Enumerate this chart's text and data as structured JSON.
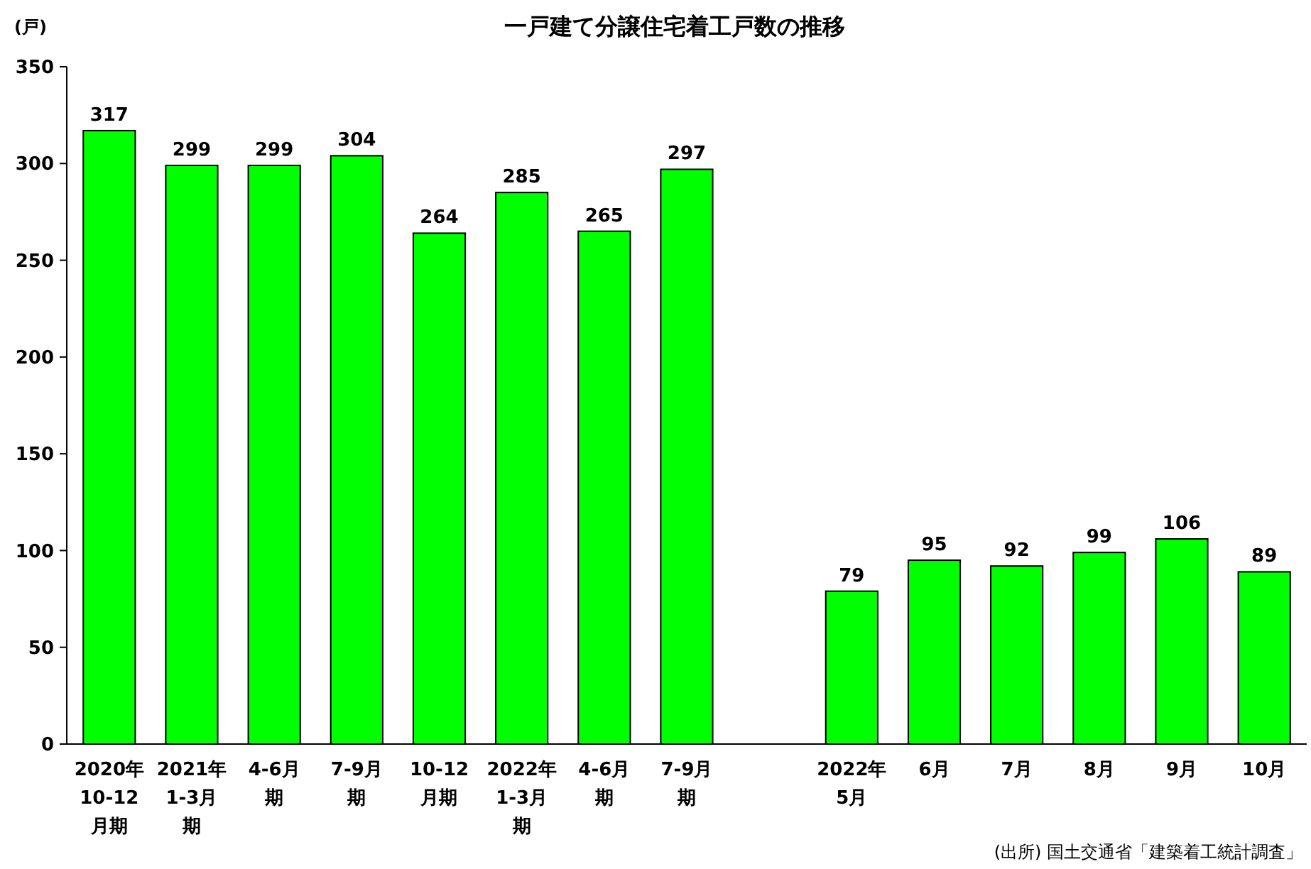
{
  "chart_data": {
    "type": "bar",
    "title": "一戸建て分譲住宅着工戸数の推移",
    "ylabel": "(戸)",
    "categories": [
      "2020年10-12月期",
      "2021年1-3月期",
      "4-6月期",
      "7-9月期",
      "10-12月期",
      "2022年1-3月期",
      "4-6月期",
      "7-9月期",
      null,
      "2022年5月",
      "6月",
      "7月",
      "8月",
      "9月",
      "10月"
    ],
    "values": [
      317,
      299,
      299,
      304,
      264,
      285,
      265,
      297,
      null,
      79,
      95,
      92,
      99,
      106,
      89
    ],
    "color": "#00ff00",
    "ylim": [
      0,
      350
    ],
    "yticks": [
      0,
      50,
      100,
      150,
      200,
      250,
      300,
      350
    ],
    "grid": false,
    "data_labels": true,
    "annotations": [
      "(出所) 国土交通省「建築着工統計調査」"
    ]
  }
}
